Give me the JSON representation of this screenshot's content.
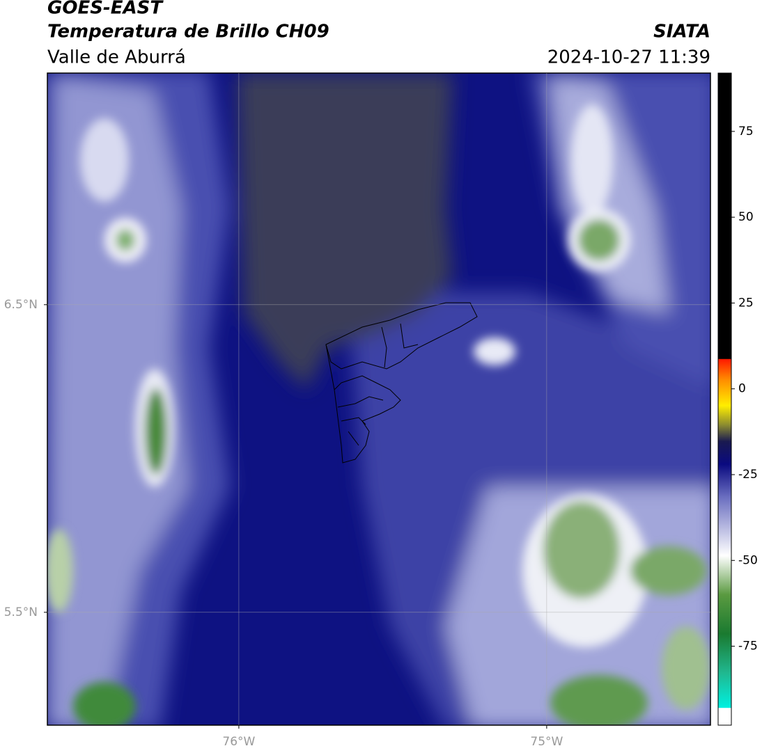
{
  "header": {
    "title": "GOES-EAST",
    "subtitle": "Temperatura de Brillo CH09",
    "region": "Valle de Aburrá",
    "source": "SIATA",
    "datetime": "2024-10-27 11:39"
  },
  "map": {
    "xlim": [
      -76.622,
      -74.468
    ],
    "ylim": [
      5.133,
      7.253
    ],
    "xticks": [
      {
        "value": -76,
        "label": "76°W"
      },
      {
        "value": -75,
        "label": "75°W"
      }
    ],
    "yticks": [
      {
        "value": 6.5,
        "label": "6.5°N"
      },
      {
        "value": 5.5,
        "label": "5.5°N"
      }
    ],
    "grid": true
  },
  "colorbar": {
    "clim": [
      -98,
      92
    ],
    "ticks": [
      75,
      50,
      25,
      0,
      -25,
      -50,
      -75
    ]
  }
}
